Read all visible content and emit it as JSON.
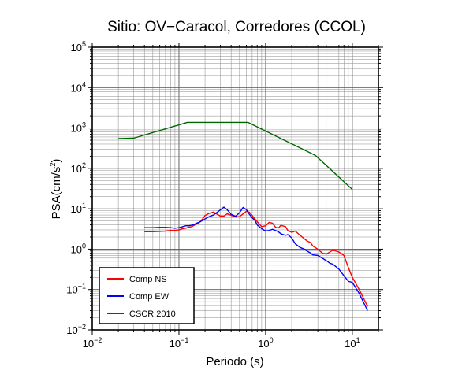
{
  "chart_data": {
    "type": "line",
    "title": "Sitio: OV−Caracol, Corredores (CCOL)",
    "xlabel": "Periodo (s)",
    "ylabel_base": "PSA(cm/s",
    "ylabel_sup": "2",
    "ylabel_end": ")",
    "x_scale": "log",
    "y_scale": "log",
    "xlim": [
      0.01,
      20
    ],
    "ylim": [
      0.01,
      100000
    ],
    "grid": true,
    "legend_position": "bottom-left",
    "x_ticks": [
      {
        "base": "10",
        "exp": "−2",
        "value": 0.01
      },
      {
        "base": "10",
        "exp": "−1",
        "value": 0.1
      },
      {
        "base": "10",
        "exp": "0",
        "value": 1
      },
      {
        "base": "10",
        "exp": "1",
        "value": 10
      }
    ],
    "y_ticks": [
      {
        "base": "10",
        "exp": "−2",
        "value": 0.01
      },
      {
        "base": "10",
        "exp": "−1",
        "value": 0.1
      },
      {
        "base": "10",
        "exp": "0",
        "value": 1
      },
      {
        "base": "10",
        "exp": "1",
        "value": 10
      },
      {
        "base": "10",
        "exp": "2",
        "value": 100
      },
      {
        "base": "10",
        "exp": "3",
        "value": 1000
      },
      {
        "base": "10",
        "exp": "4",
        "value": 10000
      },
      {
        "base": "10",
        "exp": "5",
        "value": 100000
      }
    ],
    "series": [
      {
        "name": "Comp NS",
        "color": "#ff0000",
        "x": [
          0.04,
          0.05,
          0.06,
          0.07,
          0.08,
          0.09,
          0.1,
          0.11,
          0.12,
          0.13,
          0.14,
          0.15,
          0.16,
          0.17,
          0.18,
          0.2,
          0.22,
          0.25,
          0.28,
          0.3,
          0.33,
          0.36,
          0.4,
          0.45,
          0.5,
          0.55,
          0.6,
          0.65,
          0.7,
          0.75,
          0.8,
          0.9,
          1.0,
          1.1,
          1.2,
          1.3,
          1.4,
          1.5,
          1.7,
          1.8,
          2.0,
          2.2,
          2.5,
          2.8,
          3.0,
          3.3,
          3.5,
          4.0,
          4.5,
          5.0,
          5.5,
          6.0,
          7.0,
          8.0,
          9.0,
          10.0,
          12.0,
          15.0
        ],
        "y": [
          2.7,
          2.7,
          2.75,
          2.8,
          2.9,
          2.9,
          3.0,
          3.2,
          3.3,
          3.5,
          3.6,
          3.9,
          4.2,
          4.5,
          5.0,
          6.8,
          7.6,
          8.3,
          7.2,
          6.6,
          6.6,
          7.5,
          6.9,
          6.3,
          6.4,
          7.5,
          8.7,
          8.2,
          6.8,
          5.6,
          4.8,
          3.6,
          3.8,
          4.6,
          4.4,
          3.5,
          3.3,
          3.9,
          3.6,
          2.9,
          2.6,
          2.8,
          2.2,
          1.8,
          1.6,
          1.45,
          1.2,
          1.0,
          0.8,
          0.75,
          0.85,
          0.95,
          0.85,
          0.7,
          0.35,
          0.2,
          0.1,
          0.038
        ]
      },
      {
        "name": "Comp EW",
        "color": "#0000ff",
        "x": [
          0.04,
          0.05,
          0.06,
          0.07,
          0.08,
          0.09,
          0.1,
          0.11,
          0.12,
          0.13,
          0.14,
          0.15,
          0.16,
          0.17,
          0.18,
          0.2,
          0.22,
          0.25,
          0.28,
          0.3,
          0.33,
          0.36,
          0.4,
          0.45,
          0.5,
          0.55,
          0.6,
          0.65,
          0.7,
          0.75,
          0.8,
          0.9,
          1.0,
          1.1,
          1.2,
          1.3,
          1.4,
          1.5,
          1.7,
          1.8,
          2.0,
          2.2,
          2.5,
          2.8,
          3.0,
          3.3,
          3.5,
          4.0,
          4.5,
          5.0,
          5.5,
          6.0,
          7.0,
          8.0,
          9.0,
          10.0,
          12.0,
          15.0
        ],
        "y": [
          3.4,
          3.4,
          3.45,
          3.45,
          3.4,
          3.3,
          3.4,
          3.6,
          3.8,
          3.8,
          3.9,
          4.1,
          4.4,
          4.6,
          4.9,
          5.6,
          6.3,
          7.0,
          8.4,
          9.4,
          11.0,
          9.5,
          7.3,
          6.5,
          8.0,
          10.8,
          9.5,
          7.3,
          6.0,
          5.2,
          4.0,
          3.2,
          2.8,
          2.9,
          3.1,
          2.9,
          2.7,
          2.4,
          2.2,
          2.3,
          1.9,
          1.35,
          1.1,
          1.0,
          0.9,
          0.8,
          0.72,
          0.7,
          0.6,
          0.52,
          0.45,
          0.42,
          0.32,
          0.22,
          0.16,
          0.15,
          0.08,
          0.03
        ]
      },
      {
        "name": "CSCR 2010",
        "color": "#006400",
        "x": [
          0.02,
          0.03,
          0.125,
          0.625,
          3.75,
          10.0
        ],
        "y": [
          550,
          560,
          1380,
          1380,
          210,
          30
        ]
      }
    ]
  }
}
